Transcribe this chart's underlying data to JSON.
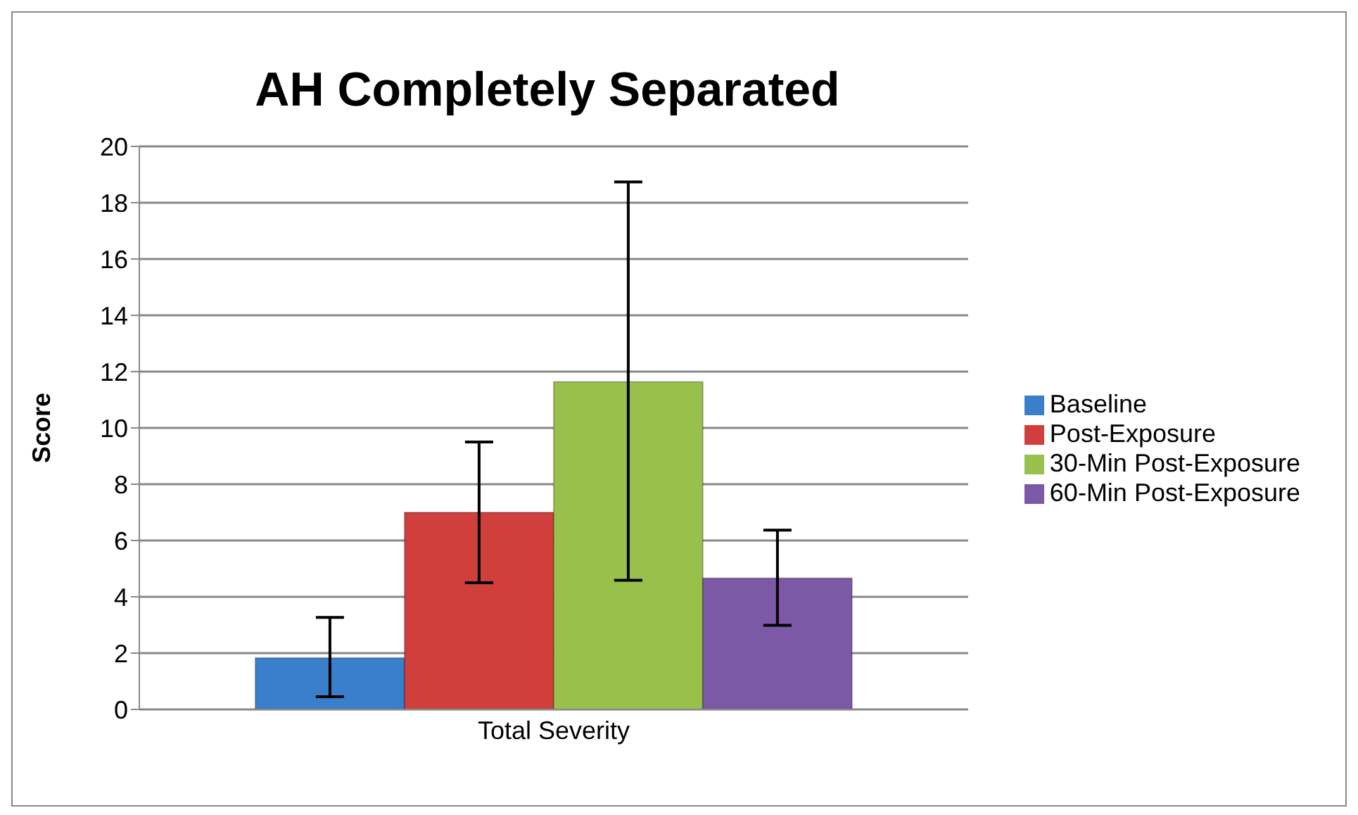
{
  "chart_data": {
    "type": "bar",
    "title": "AH Completely Separated",
    "ylabel": "Score",
    "categories": [
      "Total Severity"
    ],
    "series": [
      {
        "name": "Baseline",
        "color": "#3a7fcc",
        "values": [
          1.83
        ],
        "errors": [
          [
            0.45,
            3.27
          ]
        ]
      },
      {
        "name": "Post-Exposure",
        "color": "#d03f3c",
        "values": [
          7.0
        ],
        "errors": [
          [
            4.5,
            9.5
          ]
        ]
      },
      {
        "name": "30-Min Post-Exposure",
        "color": "#98c04a",
        "values": [
          11.64
        ],
        "errors": [
          [
            4.59,
            18.74
          ]
        ]
      },
      {
        "name": "60-Min Post-Exposure",
        "color": "#7b59a6",
        "values": [
          4.66
        ],
        "errors": [
          [
            2.99,
            6.37
          ]
        ]
      }
    ],
    "ylim": [
      0,
      20
    ],
    "yticks": [
      0,
      2,
      4,
      6,
      8,
      10,
      12,
      14,
      16,
      18,
      20
    ],
    "grid": "y",
    "legend": "right"
  }
}
